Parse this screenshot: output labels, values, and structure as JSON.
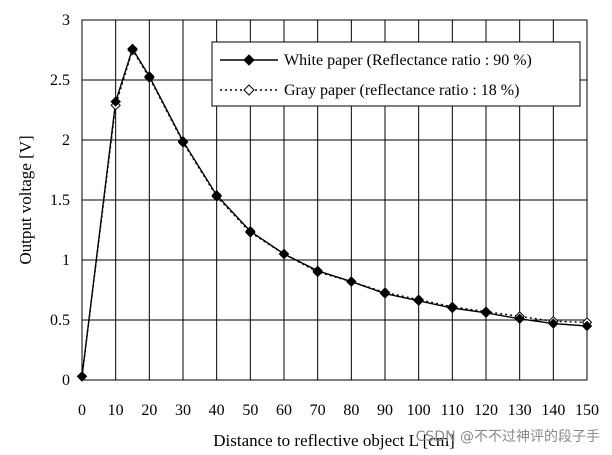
{
  "chart_data": {
    "type": "line",
    "title": "",
    "xlabel": "Distance to reflective object L [cm]",
    "ylabel": "Output voltage [V]",
    "xlim": [
      0,
      150
    ],
    "ylim": [
      0,
      3
    ],
    "xticks": [
      0,
      10,
      20,
      30,
      40,
      50,
      60,
      70,
      80,
      90,
      100,
      110,
      120,
      130,
      140,
      150
    ],
    "yticks": [
      0,
      0.5,
      1,
      1.5,
      2,
      2.5,
      3
    ],
    "xtick_labels": [
      "0",
      "10",
      "20",
      "30",
      "40",
      "50",
      "60",
      "70",
      "80",
      "90",
      "100",
      "110",
      "120",
      "130",
      "140",
      "150"
    ],
    "ytick_labels": [
      "0",
      "0.5",
      "1",
      "1.5",
      "2",
      "2.5",
      "3"
    ],
    "grid": true,
    "legend_position": "top-right",
    "series": [
      {
        "name": "White paper (Reflectance ratio : 90 %)",
        "style": "solid",
        "marker": "filled-diamond",
        "x": [
          0,
          10,
          15,
          20,
          30,
          40,
          50,
          60,
          70,
          80,
          90,
          100,
          110,
          120,
          130,
          140,
          150
        ],
        "y": [
          0.03,
          2.32,
          2.76,
          2.53,
          1.99,
          1.54,
          1.24,
          1.05,
          0.91,
          0.82,
          0.72,
          0.66,
          0.6,
          0.56,
          0.51,
          0.47,
          0.45
        ]
      },
      {
        "name": "Gray paper (reflectance ratio : 18 %)",
        "style": "dotted",
        "marker": "open-diamond",
        "x": [
          0,
          10,
          15,
          20,
          30,
          40,
          50,
          60,
          70,
          80,
          90,
          100,
          110,
          120,
          130,
          140,
          150
        ],
        "y": [
          0.03,
          2.29,
          2.75,
          2.52,
          1.98,
          1.53,
          1.23,
          1.05,
          0.9,
          0.82,
          0.73,
          0.67,
          0.61,
          0.57,
          0.53,
          0.49,
          0.48
        ]
      }
    ]
  },
  "watermark": "CSDN @不不过神评的段子手"
}
